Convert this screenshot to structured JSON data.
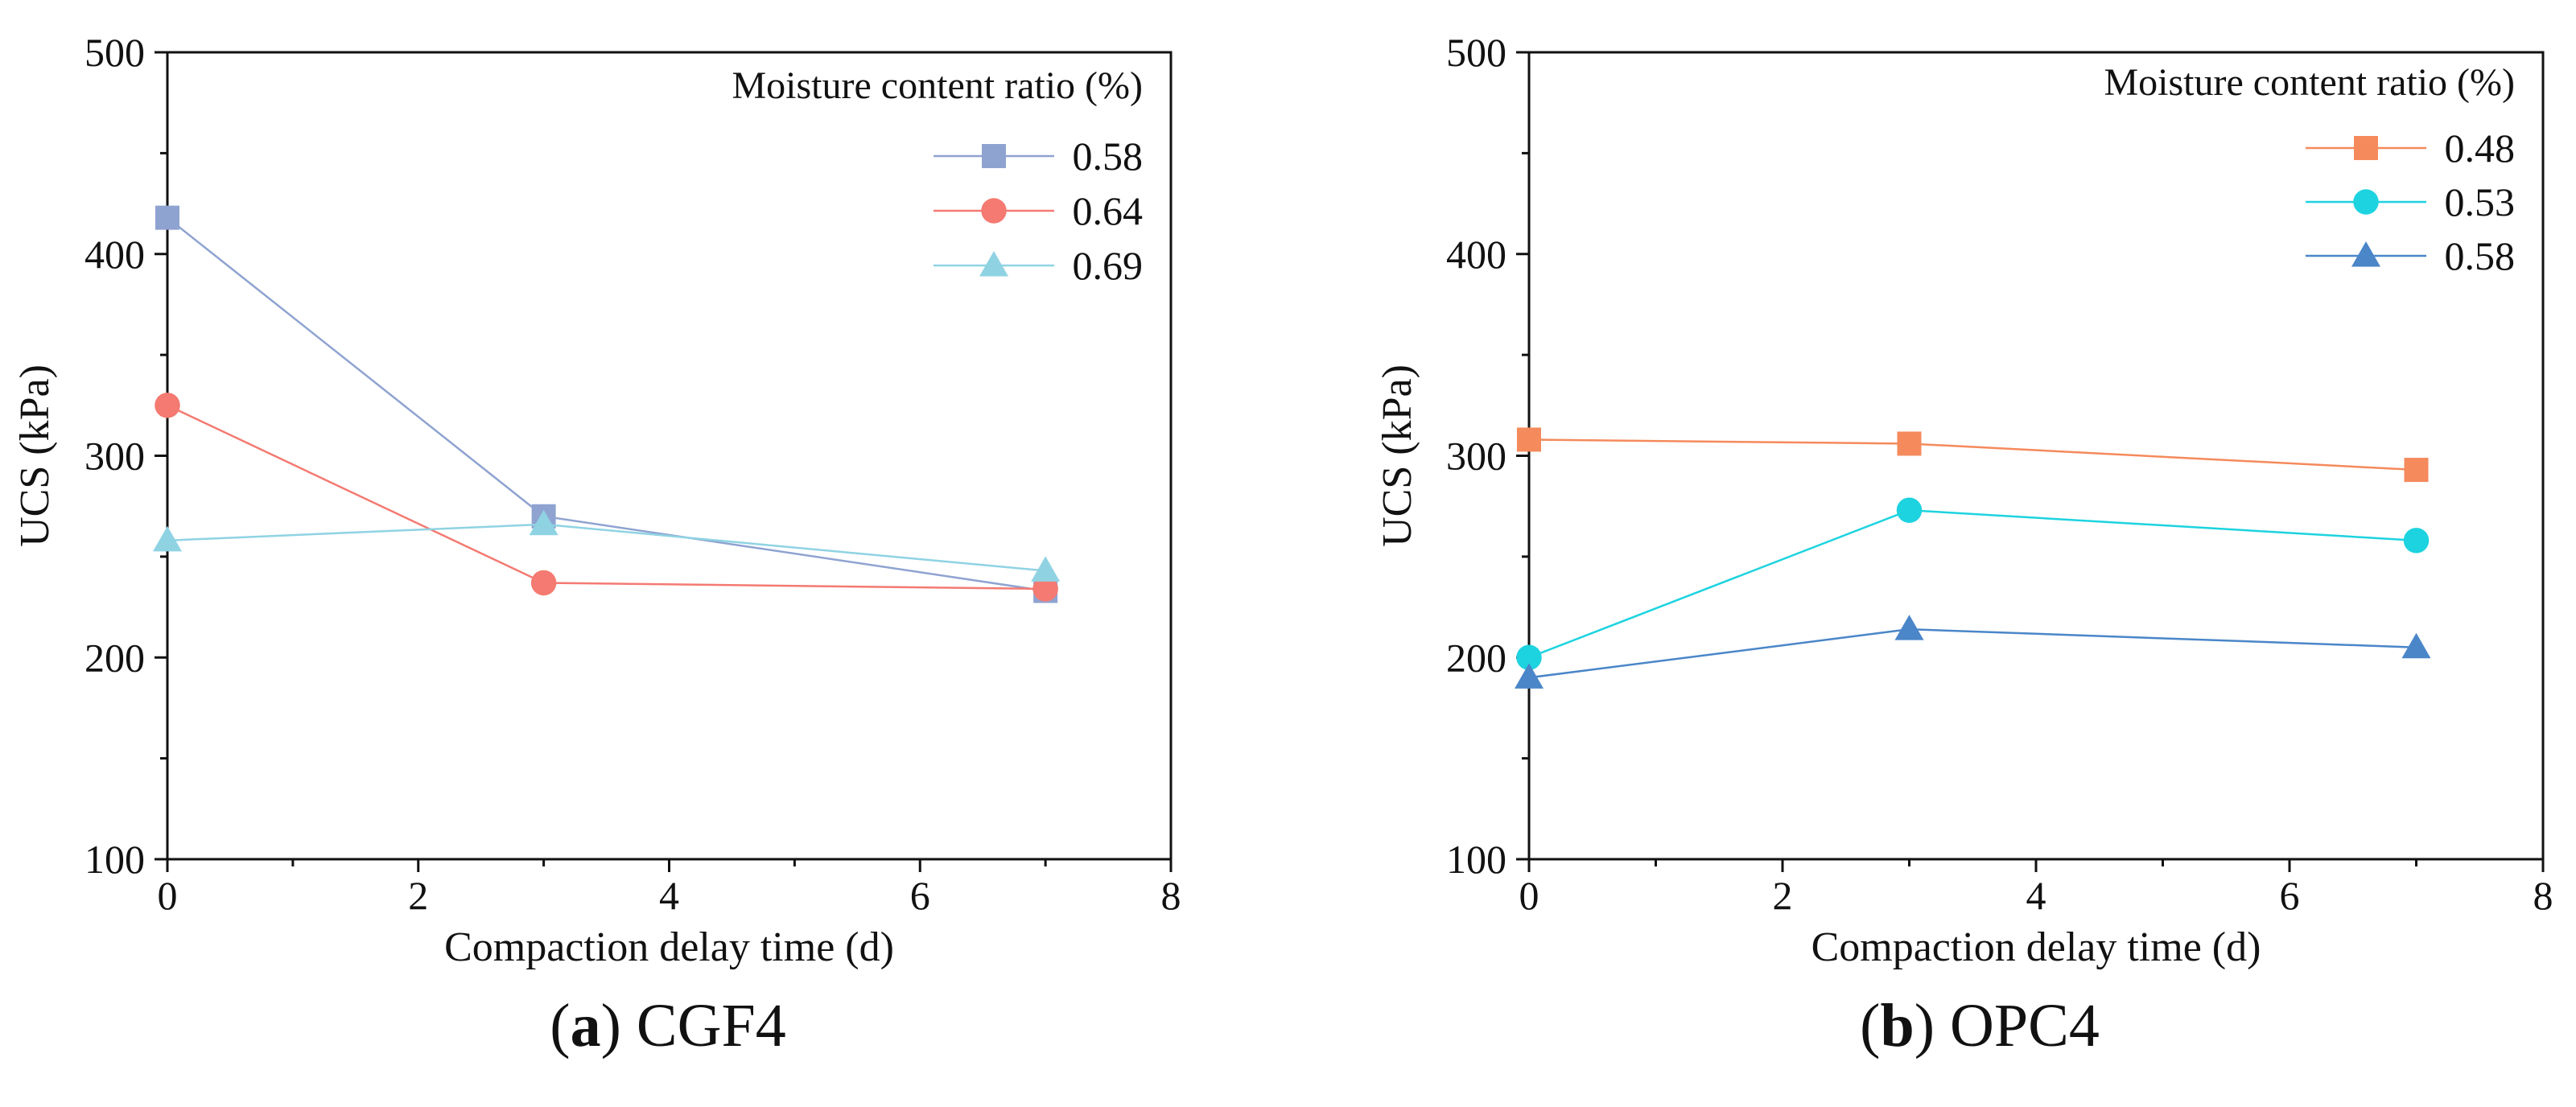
{
  "chart_data": [
    {
      "type": "line",
      "panel_label": "a",
      "caption": "CGF4",
      "xlabel": "Compaction delay time (d)",
      "ylabel": "UCS (kPa)",
      "xlim": [
        0,
        8
      ],
      "ylim": [
        100,
        500
      ],
      "xticks": [
        0,
        2,
        4,
        6,
        8
      ],
      "yticks": [
        100,
        200,
        300,
        400,
        500
      ],
      "legend_title": "Moisture content ratio (%)",
      "legend_position": "top-right",
      "grid": false,
      "x": [
        0,
        3,
        7
      ],
      "series": [
        {
          "name": "0.58",
          "values": [
            418,
            270,
            233
          ],
          "marker": "square",
          "color": "#8FA3D1"
        },
        {
          "name": "0.64",
          "values": [
            325,
            237,
            234
          ],
          "marker": "circle",
          "color": "#F47A72"
        },
        {
          "name": "0.69",
          "values": [
            258,
            266,
            243
          ],
          "marker": "triangle",
          "color": "#8FD3E3"
        }
      ]
    },
    {
      "type": "line",
      "panel_label": "b",
      "caption": "OPC4",
      "xlabel": "Compaction delay time (d)",
      "ylabel": "UCS (kPa)",
      "xlim": [
        0,
        8
      ],
      "ylim": [
        100,
        500
      ],
      "xticks": [
        0,
        2,
        4,
        6,
        8
      ],
      "yticks": [
        100,
        200,
        300,
        400,
        500
      ],
      "legend_title": "Moisture content ratio (%)",
      "legend_position": "top-right",
      "grid": false,
      "x": [
        0,
        3,
        7
      ],
      "series": [
        {
          "name": "0.48",
          "values": [
            308,
            306,
            293
          ],
          "marker": "square",
          "color": "#F58A5C"
        },
        {
          "name": "0.53",
          "values": [
            200,
            273,
            258
          ],
          "marker": "circle",
          "color": "#1DD3DF"
        },
        {
          "name": "0.58",
          "values": [
            190,
            214,
            205
          ],
          "marker": "triangle",
          "color": "#4A86C8"
        }
      ]
    }
  ]
}
